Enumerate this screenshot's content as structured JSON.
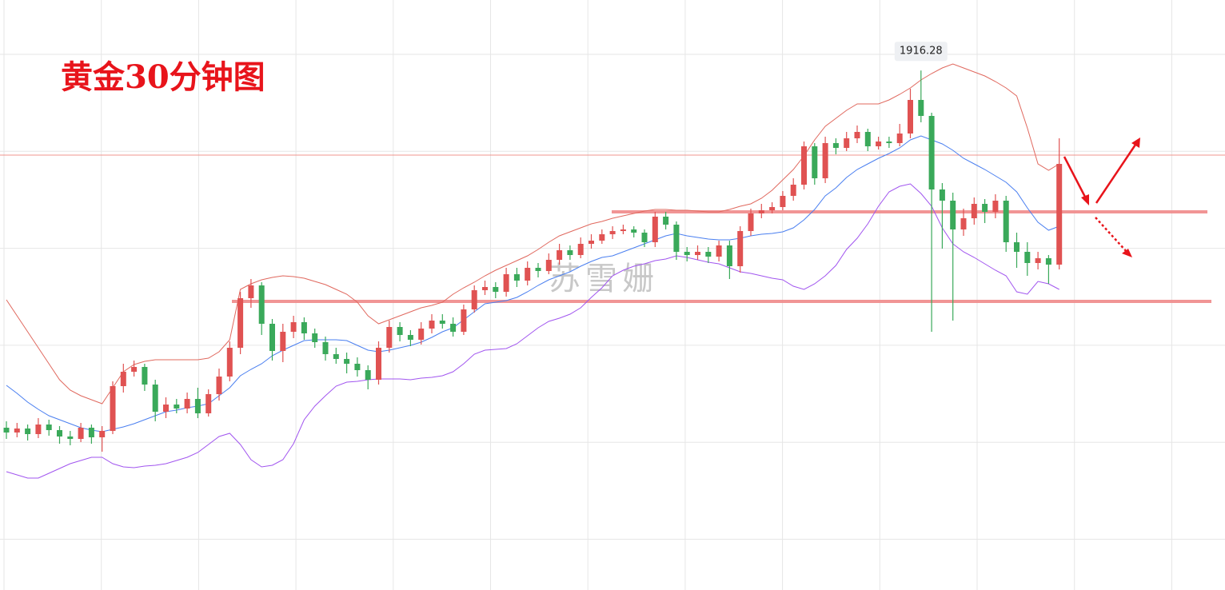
{
  "chart_data": {
    "type": "candlestick",
    "title": "黄金30分钟图",
    "watermark": "苏雪姗",
    "ylim": [
      1851.3,
      1925.1
    ],
    "grid": true,
    "up_color": "#e05252",
    "down_color": "#3aa95a",
    "open": [
      1871.6,
      1871.0,
      1871.5,
      1870.8,
      1872.0,
      1871.3,
      1870.5,
      1870.2,
      1871.6,
      1870.4,
      1871.2,
      1876.8,
      1878.6,
      1879.2,
      1877.0,
      1873.6,
      1874.5,
      1874.0,
      1875.2,
      1873.4,
      1875.8,
      1878.0,
      1881.6,
      1887.8,
      1889.4,
      1884.6,
      1881.2,
      1883.6,
      1884.8,
      1883.4,
      1882.3,
      1880.8,
      1880.2,
      1879.6,
      1878.8,
      1877.6,
      1881.6,
      1884.2,
      1883.2,
      1882.6,
      1884.0,
      1885.0,
      1884.6,
      1883.6,
      1886.4,
      1888.8,
      1889.2,
      1888.6,
      1890.8,
      1890.0,
      1891.6,
      1891.2,
      1892.6,
      1893.8,
      1893.2,
      1894.6,
      1895.0,
      1895.8,
      1896.2,
      1896.4,
      1896.0,
      1894.8,
      1898.0,
      1897.0,
      1893.6,
      1893.2,
      1893.6,
      1893.0,
      1894.4,
      1891.8,
      1896.2,
      1898.4,
      1898.8,
      1899.2,
      1900.6,
      1902.0,
      1906.8,
      1902.8,
      1907.2,
      1906.6,
      1907.8,
      1908.6,
      1906.8,
      1907.4,
      1907.2,
      1908.4,
      1912.6,
      1910.6,
      1901.4,
      1900.0,
      1896.4,
      1897.8,
      1899.6,
      1898.6,
      1900.0,
      1894.8,
      1893.6,
      1892.2,
      1892.8,
      1892.0
    ],
    "high": [
      1872.4,
      1872.2,
      1872.0,
      1872.8,
      1872.6,
      1871.8,
      1871.2,
      1872.2,
      1872.0,
      1871.8,
      1877.4,
      1879.6,
      1880.0,
      1879.6,
      1877.6,
      1875.4,
      1875.2,
      1876.0,
      1876.6,
      1876.4,
      1879.0,
      1882.4,
      1888.6,
      1890.2,
      1889.8,
      1885.2,
      1884.6,
      1885.6,
      1885.4,
      1884.0,
      1883.0,
      1881.6,
      1881.0,
      1880.4,
      1879.4,
      1882.4,
      1885.0,
      1884.8,
      1883.8,
      1884.8,
      1885.8,
      1885.8,
      1885.4,
      1887.0,
      1889.4,
      1890.0,
      1889.8,
      1891.6,
      1891.6,
      1892.4,
      1892.2,
      1893.4,
      1894.6,
      1894.4,
      1895.4,
      1895.8,
      1896.4,
      1896.8,
      1897.0,
      1896.8,
      1896.4,
      1898.6,
      1898.6,
      1897.4,
      1894.2,
      1894.4,
      1894.2,
      1895.0,
      1895.0,
      1896.8,
      1899.0,
      1899.6,
      1899.8,
      1901.2,
      1902.8,
      1907.4,
      1907.2,
      1908.0,
      1907.8,
      1908.6,
      1909.4,
      1909.0,
      1908.0,
      1908.0,
      1909.6,
      1914.0,
      1916.28,
      1911.0,
      1902.2,
      1901.0,
      1899.0,
      1900.4,
      1900.2,
      1900.8,
      1900.6,
      1896.0,
      1894.8,
      1893.6,
      1893.2,
      1907.8
    ],
    "low": [
      1870.2,
      1870.4,
      1870.0,
      1870.3,
      1870.6,
      1869.6,
      1869.4,
      1869.8,
      1869.6,
      1868.6,
      1870.8,
      1876.0,
      1878.0,
      1876.2,
      1872.4,
      1872.8,
      1873.4,
      1873.4,
      1872.8,
      1873.0,
      1875.0,
      1877.4,
      1880.8,
      1886.6,
      1883.2,
      1880.0,
      1879.8,
      1882.8,
      1882.6,
      1881.6,
      1880.0,
      1879.6,
      1878.4,
      1878.0,
      1876.4,
      1877.0,
      1881.0,
      1882.4,
      1881.8,
      1882.0,
      1883.4,
      1884.0,
      1883.0,
      1883.2,
      1886.0,
      1888.2,
      1887.8,
      1888.0,
      1889.2,
      1889.4,
      1890.4,
      1890.8,
      1892.0,
      1892.6,
      1892.8,
      1894.0,
      1894.6,
      1895.2,
      1895.8,
      1895.4,
      1894.2,
      1894.2,
      1896.4,
      1892.6,
      1892.4,
      1892.6,
      1892.2,
      1892.4,
      1890.2,
      1891.0,
      1895.6,
      1897.8,
      1898.4,
      1898.8,
      1900.0,
      1901.4,
      1902.0,
      1902.2,
      1905.8,
      1906.2,
      1907.2,
      1906.2,
      1906.4,
      1906.6,
      1906.8,
      1907.8,
      1909.8,
      1883.6,
      1894.0,
      1885.0,
      1895.6,
      1897.0,
      1897.2,
      1897.8,
      1893.6,
      1891.6,
      1890.6,
      1891.4,
      1889.6,
      1891.4
    ],
    "close": [
      1871.0,
      1871.5,
      1870.8,
      1872.0,
      1871.3,
      1870.5,
      1870.2,
      1871.6,
      1870.4,
      1871.2,
      1876.8,
      1878.6,
      1879.2,
      1877.0,
      1873.6,
      1874.5,
      1874.0,
      1875.2,
      1873.4,
      1875.8,
      1878.0,
      1881.6,
      1887.8,
      1889.4,
      1884.6,
      1881.2,
      1883.6,
      1884.8,
      1883.4,
      1882.3,
      1880.8,
      1880.2,
      1879.6,
      1878.8,
      1877.6,
      1881.6,
      1884.2,
      1883.2,
      1882.6,
      1884.0,
      1885.0,
      1884.6,
      1883.6,
      1886.4,
      1888.8,
      1889.2,
      1888.6,
      1890.8,
      1890.0,
      1891.6,
      1891.2,
      1892.6,
      1893.8,
      1893.2,
      1894.6,
      1895.0,
      1895.8,
      1896.2,
      1896.4,
      1896.0,
      1894.8,
      1898.0,
      1897.0,
      1893.6,
      1893.2,
      1893.6,
      1893.0,
      1894.4,
      1891.8,
      1896.2,
      1898.4,
      1898.8,
      1899.2,
      1900.6,
      1902.0,
      1906.8,
      1902.8,
      1907.2,
      1906.6,
      1907.8,
      1908.6,
      1906.8,
      1907.4,
      1907.2,
      1908.4,
      1912.6,
      1910.6,
      1901.4,
      1900.0,
      1896.4,
      1897.8,
      1899.6,
      1898.6,
      1900.0,
      1894.8,
      1893.6,
      1892.2,
      1892.8,
      1892.0,
      1904.6
    ],
    "bands": [
      {
        "color": "#e0685e",
        "values": [
          1887.6,
          1885.6,
          1883.6,
          1881.6,
          1879.6,
          1877.6,
          1876.3,
          1875.6,
          1875.1,
          1874.6,
          1876.6,
          1878.6,
          1879.5,
          1879.9,
          1880.1,
          1880.1,
          1880.1,
          1880.1,
          1880.1,
          1880.3,
          1881.1,
          1882.6,
          1888.9,
          1889.6,
          1890.1,
          1890.4,
          1890.6,
          1890.5,
          1890.3,
          1889.9,
          1889.5,
          1888.9,
          1888.3,
          1887.3,
          1885.6,
          1884.6,
          1885.1,
          1885.6,
          1886.1,
          1886.6,
          1886.9,
          1887.3,
          1888.3,
          1889.1,
          1889.8,
          1890.6,
          1891.3,
          1891.9,
          1892.5,
          1893.1,
          1893.9,
          1894.8,
          1895.6,
          1896.1,
          1896.6,
          1897.1,
          1897.4,
          1897.8,
          1898.1,
          1898.4,
          1898.7,
          1898.9,
          1898.9,
          1898.8,
          1898.8,
          1898.7,
          1898.6,
          1898.6,
          1898.9,
          1899.3,
          1899.6,
          1900.3,
          1901.3,
          1902.6,
          1903.9,
          1905.6,
          1907.6,
          1909.3,
          1910.3,
          1911.3,
          1912.1,
          1912.1,
          1912.1,
          1912.6,
          1913.3,
          1914.1,
          1915.1,
          1915.9,
          1916.6,
          1917.1,
          1916.6,
          1916.1,
          1915.6,
          1914.9,
          1914.1,
          1913.1,
          1909.1,
          1904.6,
          1903.8,
          1904.6
        ]
      },
      {
        "color": "#4a7ff0",
        "values": [
          1876.9,
          1875.9,
          1874.8,
          1873.9,
          1873.1,
          1872.6,
          1872.1,
          1871.6,
          1871.3,
          1871.1,
          1871.4,
          1871.7,
          1872.1,
          1872.6,
          1873.1,
          1873.6,
          1873.8,
          1874.1,
          1874.3,
          1874.6,
          1875.6,
          1876.6,
          1878.1,
          1878.9,
          1879.6,
          1880.6,
          1881.3,
          1881.9,
          1882.5,
          1882.6,
          1882.6,
          1882.6,
          1882.5,
          1881.9,
          1881.3,
          1881.1,
          1881.3,
          1881.6,
          1881.9,
          1882.3,
          1882.9,
          1883.6,
          1884.1,
          1885.1,
          1886.1,
          1887.1,
          1887.3,
          1887.5,
          1887.9,
          1888.6,
          1889.4,
          1890.1,
          1890.6,
          1891.1,
          1891.8,
          1892.4,
          1892.9,
          1893.1,
          1893.6,
          1894.1,
          1894.6,
          1895.1,
          1895.6,
          1895.9,
          1895.6,
          1895.4,
          1895.2,
          1895.1,
          1895.1,
          1895.3,
          1895.6,
          1895.8,
          1895.9,
          1896.1,
          1896.6,
          1897.6,
          1898.9,
          1900.6,
          1901.6,
          1902.9,
          1903.9,
          1904.6,
          1905.3,
          1905.9,
          1906.6,
          1907.6,
          1908.1,
          1907.6,
          1907.1,
          1906.3,
          1905.3,
          1904.6,
          1903.9,
          1903.1,
          1902.3,
          1901.1,
          1899.1,
          1897.3,
          1896.3,
          1896.8
        ]
      },
      {
        "color": "#a155ef",
        "values": [
          1866.1,
          1865.7,
          1865.3,
          1865.3,
          1865.9,
          1866.5,
          1867.1,
          1867.5,
          1867.9,
          1867.9,
          1867.1,
          1866.7,
          1866.6,
          1866.8,
          1866.9,
          1867.1,
          1867.5,
          1867.9,
          1868.5,
          1869.5,
          1870.5,
          1870.9,
          1869.5,
          1867.6,
          1866.7,
          1866.9,
          1867.6,
          1869.6,
          1872.6,
          1874.3,
          1875.6,
          1876.8,
          1877.3,
          1877.4,
          1877.6,
          1877.7,
          1877.7,
          1877.7,
          1877.6,
          1877.8,
          1877.9,
          1878.1,
          1878.6,
          1879.6,
          1880.8,
          1881.3,
          1881.4,
          1881.5,
          1882.1,
          1883.1,
          1884.1,
          1884.9,
          1885.3,
          1885.8,
          1886.6,
          1887.9,
          1889.1,
          1890.6,
          1891.3,
          1891.8,
          1892.1,
          1892.5,
          1892.7,
          1893.1,
          1892.9,
          1892.6,
          1892.3,
          1892.1,
          1891.6,
          1891.1,
          1890.9,
          1890.6,
          1890.3,
          1890.1,
          1889.3,
          1888.9,
          1889.6,
          1890.6,
          1891.9,
          1893.9,
          1895.3,
          1897.1,
          1899.3,
          1901.1,
          1901.8,
          1902.1,
          1900.9,
          1899.3,
          1896.6,
          1894.6,
          1893.6,
          1892.9,
          1892.1,
          1891.3,
          1890.6,
          1888.6,
          1888.3,
          1889.9,
          1889.6,
          1888.9
        ]
      }
    ],
    "levels": [
      {
        "value": 1905.7,
        "color": "#ef8a80",
        "width": 1
      },
      {
        "value": 1898.6,
        "color": "#ef8a8a",
        "width": 4
      },
      {
        "value": 1887.4,
        "color": "#ef8a8a",
        "width": 4
      }
    ]
  }
}
